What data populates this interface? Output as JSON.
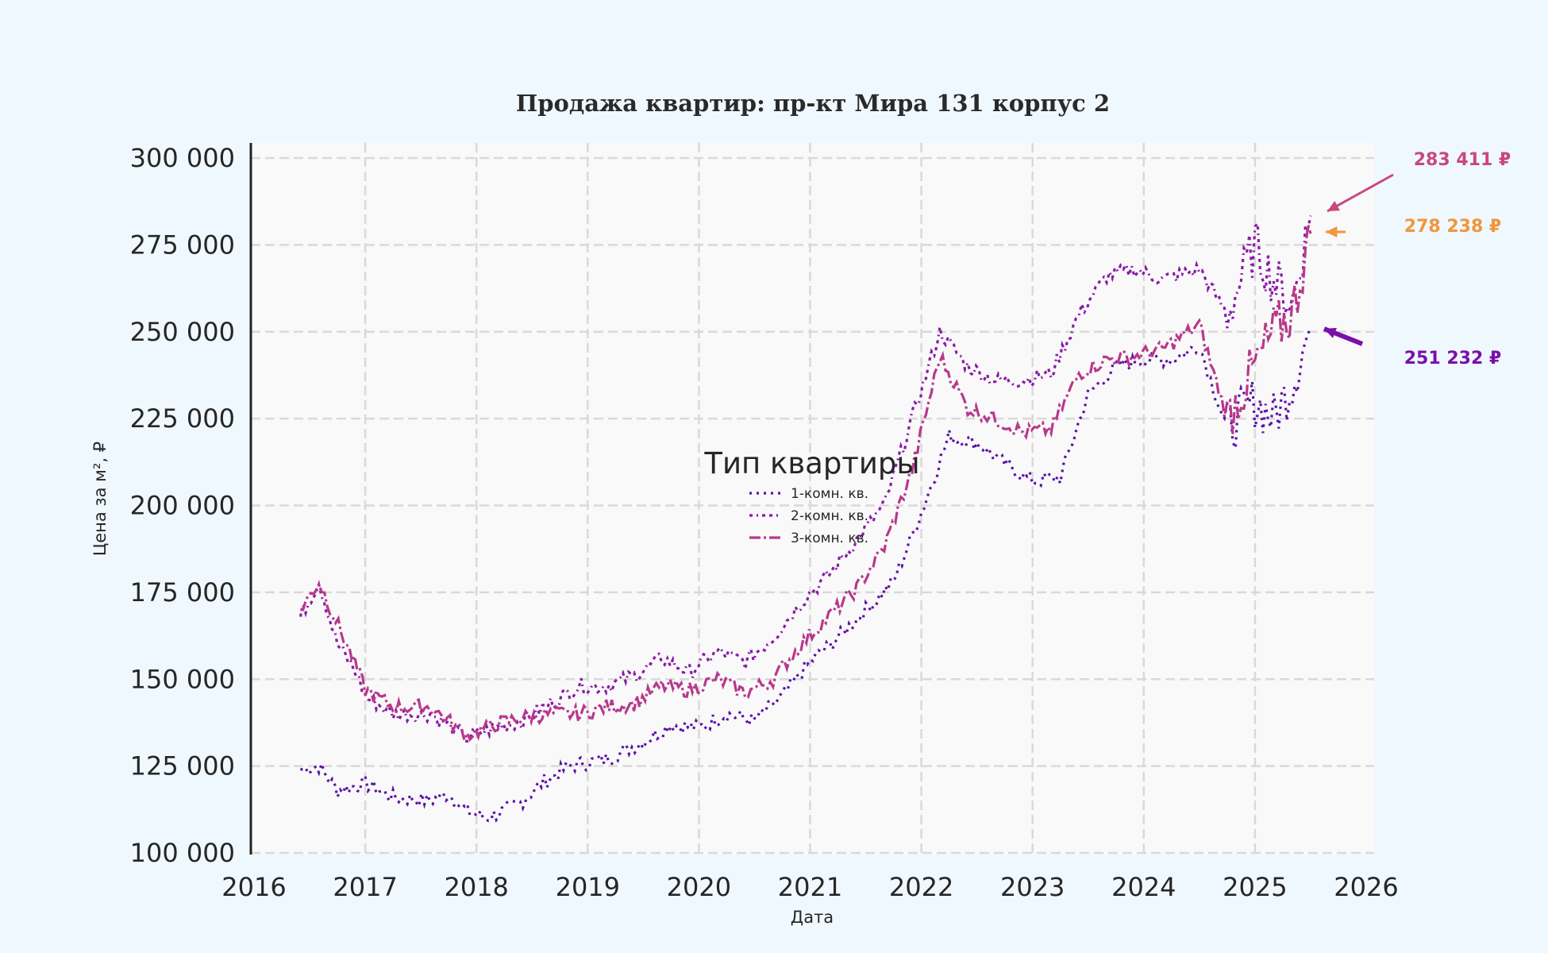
{
  "chart_data": {
    "type": "line",
    "title": "Продажа квартир: пр-кт Мира 131 корпус 2",
    "xlabel": "Дата",
    "ylabel": "Цена за м², ₽",
    "xlim": [
      "2016-01-01",
      "2026-01-01"
    ],
    "ylim": [
      100000,
      302000
    ],
    "x_ticks": [
      "2016",
      "2017",
      "2018",
      "2019",
      "2020",
      "2021",
      "2022",
      "2023",
      "2024",
      "2025",
      "2026"
    ],
    "y_ticks": [
      "100 000",
      "125 000",
      "150 000",
      "175 000",
      "200 000",
      "225 000",
      "250 000",
      "275 000",
      "300 000"
    ],
    "y_tick_values": [
      100000,
      125000,
      150000,
      175000,
      200000,
      225000,
      250000,
      275000,
      300000
    ],
    "grid": true,
    "legend": {
      "title": "Тип квартиры",
      "placement": "center"
    },
    "series": [
      {
        "name": "1-комн. кв.",
        "color": "#5b10a6",
        "style": "dotted",
        "points": [
          [
            "2016-06",
            124000
          ],
          [
            "2016-08",
            125000
          ],
          [
            "2016-10",
            118000
          ],
          [
            "2017-01",
            120000
          ],
          [
            "2017-04",
            116000
          ],
          [
            "2017-08",
            115000
          ],
          [
            "2017-10",
            117000
          ],
          [
            "2017-12",
            112000
          ],
          [
            "2018-02",
            110000
          ],
          [
            "2018-04",
            112000
          ],
          [
            "2018-06",
            115000
          ],
          [
            "2018-08",
            120000
          ],
          [
            "2018-11",
            125000
          ],
          [
            "2019-03",
            127000
          ],
          [
            "2019-07",
            132000
          ],
          [
            "2019-10",
            137000
          ],
          [
            "2020-01",
            136000
          ],
          [
            "2020-04",
            140000
          ],
          [
            "2020-07",
            138000
          ],
          [
            "2020-10",
            145000
          ],
          [
            "2021-01",
            155000
          ],
          [
            "2021-04",
            162000
          ],
          [
            "2021-07",
            170000
          ],
          [
            "2021-10",
            178000
          ],
          [
            "2022-01",
            198000
          ],
          [
            "2022-04",
            220000
          ],
          [
            "2022-07",
            218000
          ],
          [
            "2022-10",
            212000
          ],
          [
            "2023-01",
            207000
          ],
          [
            "2023-04",
            208000
          ],
          [
            "2023-07",
            232000
          ],
          [
            "2023-10",
            240000
          ],
          [
            "2024-01",
            242000
          ],
          [
            "2024-04",
            242000
          ],
          [
            "2024-07",
            246000
          ],
          [
            "2024-10",
            222000
          ],
          [
            "2025-01",
            230000
          ],
          [
            "2025-03",
            225000
          ],
          [
            "2025-05",
            235000
          ],
          [
            "2025-07",
            251232
          ]
        ]
      },
      {
        "name": "2-комн. кв.",
        "color": "#8a1aa6",
        "style": "dash-dot-dot",
        "points": [
          [
            "2016-06",
            168000
          ],
          [
            "2016-08",
            178000
          ],
          [
            "2016-10",
            160000
          ],
          [
            "2016-12",
            152000
          ],
          [
            "2017-01",
            145000
          ],
          [
            "2017-04",
            140000
          ],
          [
            "2017-08",
            140000
          ],
          [
            "2017-12",
            133000
          ],
          [
            "2018-03",
            136000
          ],
          [
            "2018-06",
            138000
          ],
          [
            "2018-09",
            143000
          ],
          [
            "2018-12",
            148000
          ],
          [
            "2019-03",
            148000
          ],
          [
            "2019-06",
            151000
          ],
          [
            "2019-09",
            156000
          ],
          [
            "2019-12",
            152000
          ],
          [
            "2020-03",
            158000
          ],
          [
            "2020-06",
            155000
          ],
          [
            "2020-09",
            162000
          ],
          [
            "2020-12",
            172000
          ],
          [
            "2021-03",
            180000
          ],
          [
            "2021-06",
            190000
          ],
          [
            "2021-09",
            200000
          ],
          [
            "2021-12",
            225000
          ],
          [
            "2022-03",
            250000
          ],
          [
            "2022-06",
            240000
          ],
          [
            "2022-09",
            236000
          ],
          [
            "2022-12",
            236000
          ],
          [
            "2023-03",
            238000
          ],
          [
            "2023-06",
            255000
          ],
          [
            "2023-09",
            266000
          ],
          [
            "2023-12",
            268000
          ],
          [
            "2024-03",
            265000
          ],
          [
            "2024-07",
            268000
          ],
          [
            "2024-10",
            255000
          ],
          [
            "2025-01",
            275000
          ],
          [
            "2025-03",
            265000
          ],
          [
            "2025-05",
            258000
          ],
          [
            "2025-07",
            283411
          ]
        ]
      },
      {
        "name": "3-комн. кв.",
        "color": "#b8388c",
        "style": "dash-dot",
        "points": [
          [
            "2016-06",
            170000
          ],
          [
            "2016-08",
            178000
          ],
          [
            "2016-11",
            160000
          ],
          [
            "2017-01",
            147000
          ],
          [
            "2017-04",
            142000
          ],
          [
            "2017-08",
            142000
          ],
          [
            "2017-12",
            134000
          ],
          [
            "2018-03",
            137000
          ],
          [
            "2018-06",
            139000
          ],
          [
            "2018-09",
            140000
          ],
          [
            "2018-12",
            140000
          ],
          [
            "2019-03",
            142000
          ],
          [
            "2019-06",
            143000
          ],
          [
            "2019-09",
            148000
          ],
          [
            "2019-12",
            147000
          ],
          [
            "2020-03",
            150000
          ],
          [
            "2020-06",
            146000
          ],
          [
            "2020-09",
            150000
          ],
          [
            "2020-12",
            160000
          ],
          [
            "2021-03",
            168000
          ],
          [
            "2021-06",
            176000
          ],
          [
            "2021-09",
            188000
          ],
          [
            "2021-12",
            210000
          ],
          [
            "2022-03",
            243000
          ],
          [
            "2022-06",
            228000
          ],
          [
            "2022-09",
            225000
          ],
          [
            "2022-12",
            221000
          ],
          [
            "2023-03",
            222000
          ],
          [
            "2023-06",
            238000
          ],
          [
            "2023-09",
            242000
          ],
          [
            "2023-12",
            243000
          ],
          [
            "2024-03",
            245000
          ],
          [
            "2024-07",
            252000
          ],
          [
            "2024-10",
            225000
          ],
          [
            "2025-01",
            240000
          ],
          [
            "2025-03",
            250000
          ],
          [
            "2025-05",
            255000
          ],
          [
            "2025-07",
            278238
          ]
        ]
      }
    ],
    "annotations": [
      {
        "text": "283 411 ₽",
        "series": "2-комн. кв.",
        "color": "#c8487e"
      },
      {
        "text": "278 238 ₽",
        "series": "3-комн. кв.",
        "color": "#f0963c"
      },
      {
        "text": "251 232 ₽",
        "series": "1-комн. кв.",
        "color": "#7a10a8"
      }
    ]
  }
}
